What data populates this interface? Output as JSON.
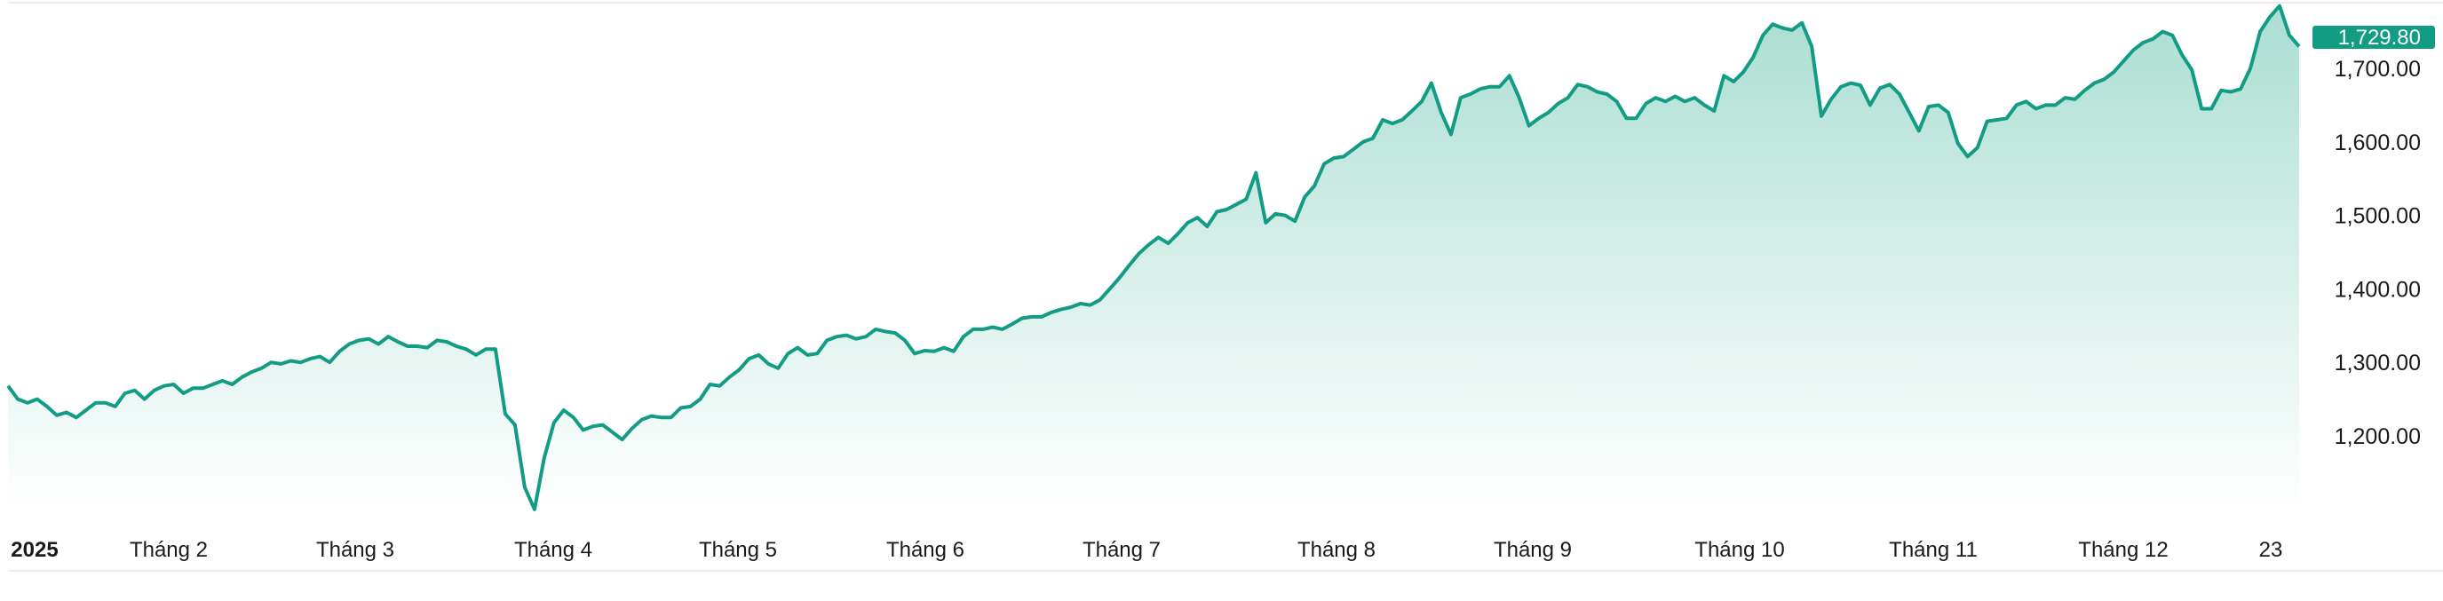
{
  "chart_data": {
    "type": "area",
    "title": "",
    "xlabel": "",
    "ylabel": "",
    "x_tick_labels": [
      "2025",
      "Tháng 2",
      "Tháng 3",
      "Tháng 4",
      "Tháng 5",
      "Tháng 6",
      "Tháng 7",
      "Tháng 8",
      "Tháng 9",
      "Tháng 10",
      "Tháng 11",
      "Tháng 12",
      "23"
    ],
    "y_tick_labels": [
      "1,200.00",
      "1,300.00",
      "1,400.00",
      "1,500.00",
      "1,600.00",
      "1,700.00"
    ],
    "y_ticks": [
      1200,
      1300,
      1400,
      1500,
      1600,
      1700
    ],
    "ylim": [
      1090,
      1790
    ],
    "y_axis_position": "right",
    "grid": false,
    "last_value_label": "1,729.80",
    "colors": {
      "line": "#139c84",
      "fill_top": "#a5dccf",
      "badge": "#139c84"
    },
    "values": [
      1268,
      1250,
      1245,
      1250,
      1240,
      1228,
      1232,
      1225,
      1235,
      1245,
      1245,
      1240,
      1258,
      1262,
      1250,
      1262,
      1268,
      1270,
      1258,
      1265,
      1265,
      1270,
      1275,
      1270,
      1280,
      1287,
      1292,
      1300,
      1298,
      1302,
      1300,
      1305,
      1308,
      1300,
      1315,
      1325,
      1330,
      1332,
      1325,
      1335,
      1328,
      1322,
      1322,
      1320,
      1330,
      1328,
      1322,
      1318,
      1310,
      1318,
      1318,
      1230,
      1215,
      1130,
      1100,
      1170,
      1218,
      1235,
      1225,
      1208,
      1213,
      1215,
      1205,
      1195,
      1210,
      1222,
      1227,
      1225,
      1225,
      1238,
      1240,
      1250,
      1270,
      1268,
      1280,
      1290,
      1305,
      1310,
      1298,
      1292,
      1312,
      1320,
      1310,
      1312,
      1330,
      1335,
      1337,
      1332,
      1335,
      1345,
      1342,
      1340,
      1330,
      1312,
      1316,
      1315,
      1320,
      1315,
      1335,
      1345,
      1345,
      1348,
      1345,
      1352,
      1360,
      1362,
      1362,
      1368,
      1372,
      1375,
      1380,
      1378,
      1385,
      1400,
      1415,
      1432,
      1448,
      1460,
      1470,
      1462,
      1475,
      1490,
      1497,
      1485,
      1505,
      1508,
      1515,
      1522,
      1558,
      1490,
      1502,
      1500,
      1492,
      1525,
      1540,
      1570,
      1578,
      1580,
      1590,
      1600,
      1605,
      1630,
      1625,
      1630,
      1642,
      1655,
      1680,
      1640,
      1610,
      1660,
      1665,
      1672,
      1675,
      1675,
      1690,
      1660,
      1622,
      1632,
      1640,
      1652,
      1660,
      1678,
      1675,
      1668,
      1665,
      1655,
      1632,
      1632,
      1652,
      1660,
      1655,
      1662,
      1655,
      1660,
      1650,
      1642,
      1690,
      1682,
      1695,
      1715,
      1745,
      1760,
      1755,
      1752,
      1762,
      1730,
      1635,
      1658,
      1675,
      1680,
      1677,
      1650,
      1673,
      1678,
      1665,
      1640,
      1615,
      1648,
      1650,
      1640,
      1598,
      1580,
      1592,
      1628,
      1630,
      1632,
      1650,
      1655,
      1645,
      1650,
      1650,
      1660,
      1658,
      1670,
      1680,
      1685,
      1695,
      1710,
      1725,
      1735,
      1740,
      1750,
      1745,
      1718,
      1698,
      1645,
      1645,
      1670,
      1668,
      1672,
      1700,
      1750,
      1770,
      1785,
      1745,
      1729.8
    ]
  }
}
